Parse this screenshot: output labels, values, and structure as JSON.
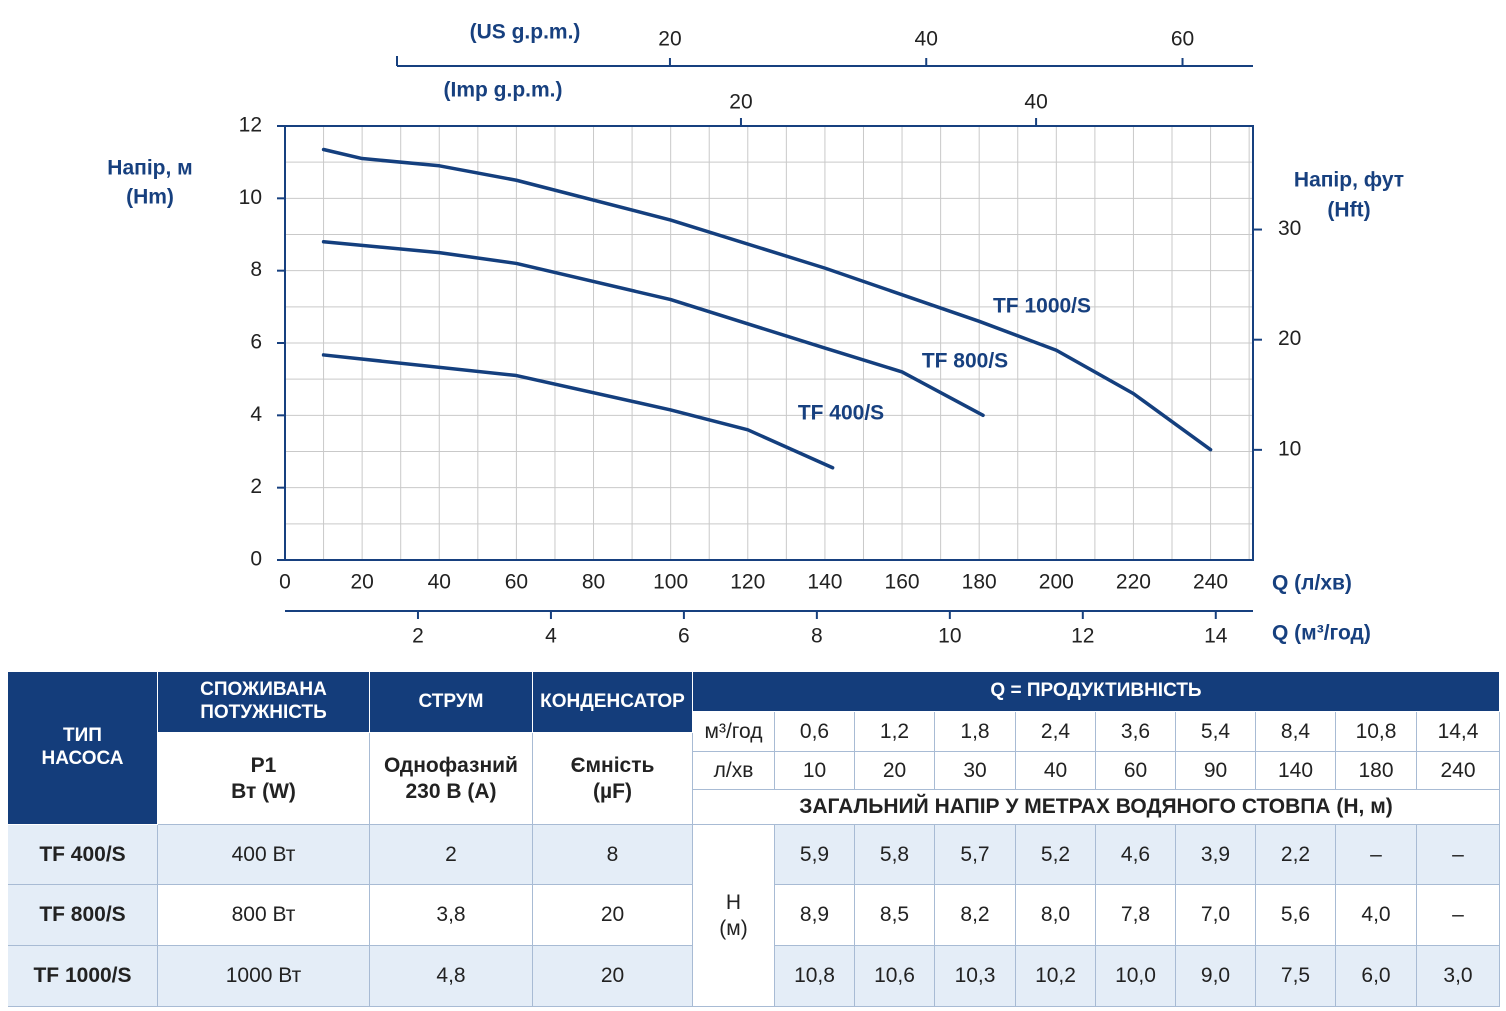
{
  "chart_data": {
    "type": "line",
    "ylabel": [
      "Напір, м",
      "(Hm)"
    ],
    "y2label": [
      "Напір, фут",
      "(Hft)"
    ],
    "xlabel": "Q (л/хв)",
    "x2label": "Q (м³/год)",
    "top_us_label": "(US g.p.m.)",
    "top_imp_label": "(Imp g.p.m.)",
    "xlim": [
      0,
      251
    ],
    "xticks": [
      0,
      20,
      40,
      60,
      80,
      100,
      120,
      140,
      160,
      180,
      200,
      220,
      240
    ],
    "ylim": [
      0,
      12
    ],
    "yticks": [
      0,
      2,
      4,
      6,
      8,
      10,
      12
    ],
    "y2lim": [
      0,
      39.4
    ],
    "y2ticks": [
      10,
      20,
      30
    ],
    "x2lim": [
      0,
      14.56
    ],
    "x2ticks": [
      2,
      4,
      6,
      8,
      10,
      12,
      14
    ],
    "us_lim": [
      -1.3,
      65.5
    ],
    "us_ticks": [
      20,
      40,
      60
    ],
    "imp_lim": [
      -10.9,
      54.7
    ],
    "imp_ticks": [
      20,
      40
    ],
    "grid": true,
    "xgrid": [
      10,
      20,
      30,
      40,
      50,
      60,
      70,
      80,
      90,
      100,
      110,
      120,
      130,
      140,
      150,
      160,
      170,
      180,
      190,
      200,
      210,
      220,
      230,
      240,
      250
    ],
    "ygrid": [
      1,
      2,
      3,
      4,
      5,
      6,
      7,
      8,
      9,
      10,
      11
    ],
    "series": [
      {
        "name": "TF 1000/S",
        "color": "#143f7e",
        "x": [
          10,
          20,
          40,
          60,
          100,
          140,
          180,
          200,
          220,
          240
        ],
        "values": [
          11.35,
          11.1,
          10.9,
          10.5,
          9.4,
          8.07,
          6.6,
          5.8,
          4.6,
          3.05
        ]
      },
      {
        "name": "TF 800/S",
        "color": "#143f7e",
        "x": [
          10,
          40,
          60,
          100,
          140,
          160,
          181
        ],
        "values": [
          8.8,
          8.5,
          8.2,
          7.2,
          5.86,
          5.2,
          4.0
        ]
      },
      {
        "name": "TF 400/S",
        "color": "#143f7e",
        "x": [
          10,
          60,
          100,
          120,
          142
        ],
        "values": [
          5.67,
          5.1,
          4.15,
          3.6,
          2.55
        ]
      }
    ]
  },
  "table": {
    "type_header": [
      "ТИП",
      "НАСОСА"
    ],
    "power_header": [
      "СПОЖИВАНА",
      "ПОТУЖНІСТЬ"
    ],
    "power_sub": [
      "P1",
      "Вт (W)"
    ],
    "current_header": "СТРУМ",
    "current_sub": [
      "Однофазний",
      "230 В (А)"
    ],
    "cap_header": "КОНДЕНСАТОР",
    "cap_sub": [
      "Ємність",
      "(µF)"
    ],
    "q_header": "Q = ПРОДУКТИВНІСТЬ",
    "m3h_label": "м³/год",
    "m3h": [
      "0,6",
      "1,2",
      "1,8",
      "2,4",
      "3,6",
      "5,4",
      "8,4",
      "10,8",
      "14,4"
    ],
    "lmin_label": "л/хв",
    "lmin": [
      "10",
      "20",
      "30",
      "40",
      "60",
      "90",
      "140",
      "180",
      "240"
    ],
    "head_header": "ЗАГАЛЬНИЙ НАПІР У МЕТРАХ ВОДЯНОГО СТОВПА (Н, м)",
    "h_label": [
      "H",
      "(м)"
    ],
    "rows": [
      [
        "TF 400/S",
        "400 Вт",
        "2",
        "8",
        [
          "5,9",
          "5,8",
          "5,7",
          "5,2",
          "4,6",
          "3,9",
          "2,2",
          "–",
          "–"
        ]
      ],
      [
        "TF 800/S",
        "800 Вт",
        "3,8",
        "20",
        [
          "8,9",
          "8,5",
          "8,2",
          "8,0",
          "7,8",
          "7,0",
          "5,6",
          "4,0",
          "–"
        ]
      ],
      [
        "TF 1000/S",
        "1000 Вт",
        "4,8",
        "20",
        [
          "10,8",
          "10,6",
          "10,3",
          "10,2",
          "10,0",
          "9,0",
          "7,5",
          "6,0",
          "3,0"
        ]
      ]
    ]
  }
}
